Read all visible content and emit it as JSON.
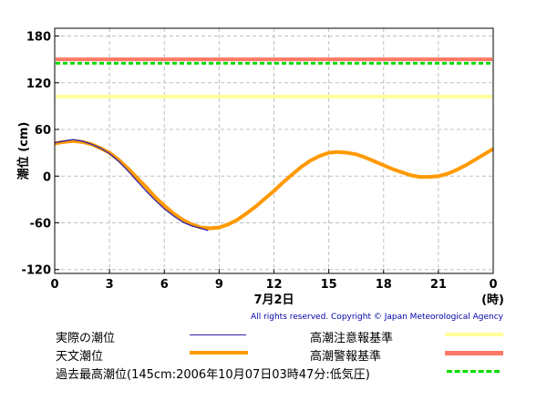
{
  "chart_data": {
    "type": "line",
    "ylabel": "潮位 (cm)",
    "x_ticks": [
      "0",
      "3",
      "6",
      "9",
      "12",
      "15",
      "18",
      "21",
      "0"
    ],
    "x_sublabel_date": "7月2日",
    "x_unit": "(時)",
    "y_ticks": [
      "180",
      "120",
      "60",
      "0",
      "-60",
      "-120"
    ],
    "xlim": [
      0,
      24
    ],
    "ylim": [
      -125,
      190
    ],
    "grid": true,
    "reference_lines": [
      {
        "name": "高潮注意報基準",
        "value": 102,
        "color": "#ffff99"
      },
      {
        "name": "高潮警報基準",
        "value": 150,
        "color": "#ff7766"
      },
      {
        "name": "過去最高潮位",
        "value": 145,
        "color": "#00dd00",
        "style": "dashed"
      }
    ],
    "series": [
      {
        "name": "実際の潮位",
        "color": "#3322aa",
        "x": [
          0,
          0.5,
          1,
          1.5,
          2,
          2.5,
          3,
          3.5,
          4,
          4.5,
          5,
          5.5,
          6,
          6.5,
          7,
          7.5,
          8,
          8.4
        ],
        "y": [
          43,
          45,
          47,
          45,
          41,
          36,
          29,
          19,
          7,
          -6,
          -19,
          -31,
          -42,
          -51,
          -59,
          -64,
          -67,
          -70
        ]
      },
      {
        "name": "天文潮位",
        "color": "#ff9900",
        "x": [
          0,
          0.5,
          1,
          1.5,
          2,
          2.5,
          3,
          3.5,
          4,
          4.5,
          5,
          5.5,
          6,
          6.5,
          7,
          7.5,
          8,
          8.5,
          9,
          9.5,
          10,
          10.5,
          11,
          11.5,
          12,
          12.5,
          13,
          13.5,
          14,
          14.5,
          15,
          15.5,
          16,
          16.5,
          17,
          17.5,
          18,
          18.5,
          19,
          19.5,
          20,
          20.5,
          21,
          21.5,
          22,
          22.5,
          23,
          23.5,
          24
        ],
        "y": [
          42,
          44,
          45,
          44,
          41,
          36,
          30,
          21,
          10,
          -2,
          -14,
          -27,
          -38,
          -48,
          -56,
          -62,
          -66,
          -67,
          -66,
          -62,
          -56,
          -48,
          -39,
          -29,
          -19,
          -8,
          2,
          12,
          20,
          26,
          30,
          31,
          30,
          28,
          24,
          19,
          14,
          9,
          5,
          1,
          -1,
          -1,
          0,
          3,
          8,
          14,
          21,
          28,
          35
        ]
      }
    ]
  },
  "copyright": "All rights reserved. Copyright © Japan Meteorological Agency",
  "legend": {
    "actual": "実際の潮位",
    "astro": "天文潮位",
    "caution": "高潮注意報基準",
    "warning": "高潮警報基準",
    "record": "過去最高潮位(145cm:2006年10月07日03時47分:低気圧)"
  },
  "colors": {
    "actual": "#3322aa",
    "astro": "#ff9900",
    "caution": "#ffff99",
    "warning": "#ff7766",
    "record": "#00dd00"
  }
}
